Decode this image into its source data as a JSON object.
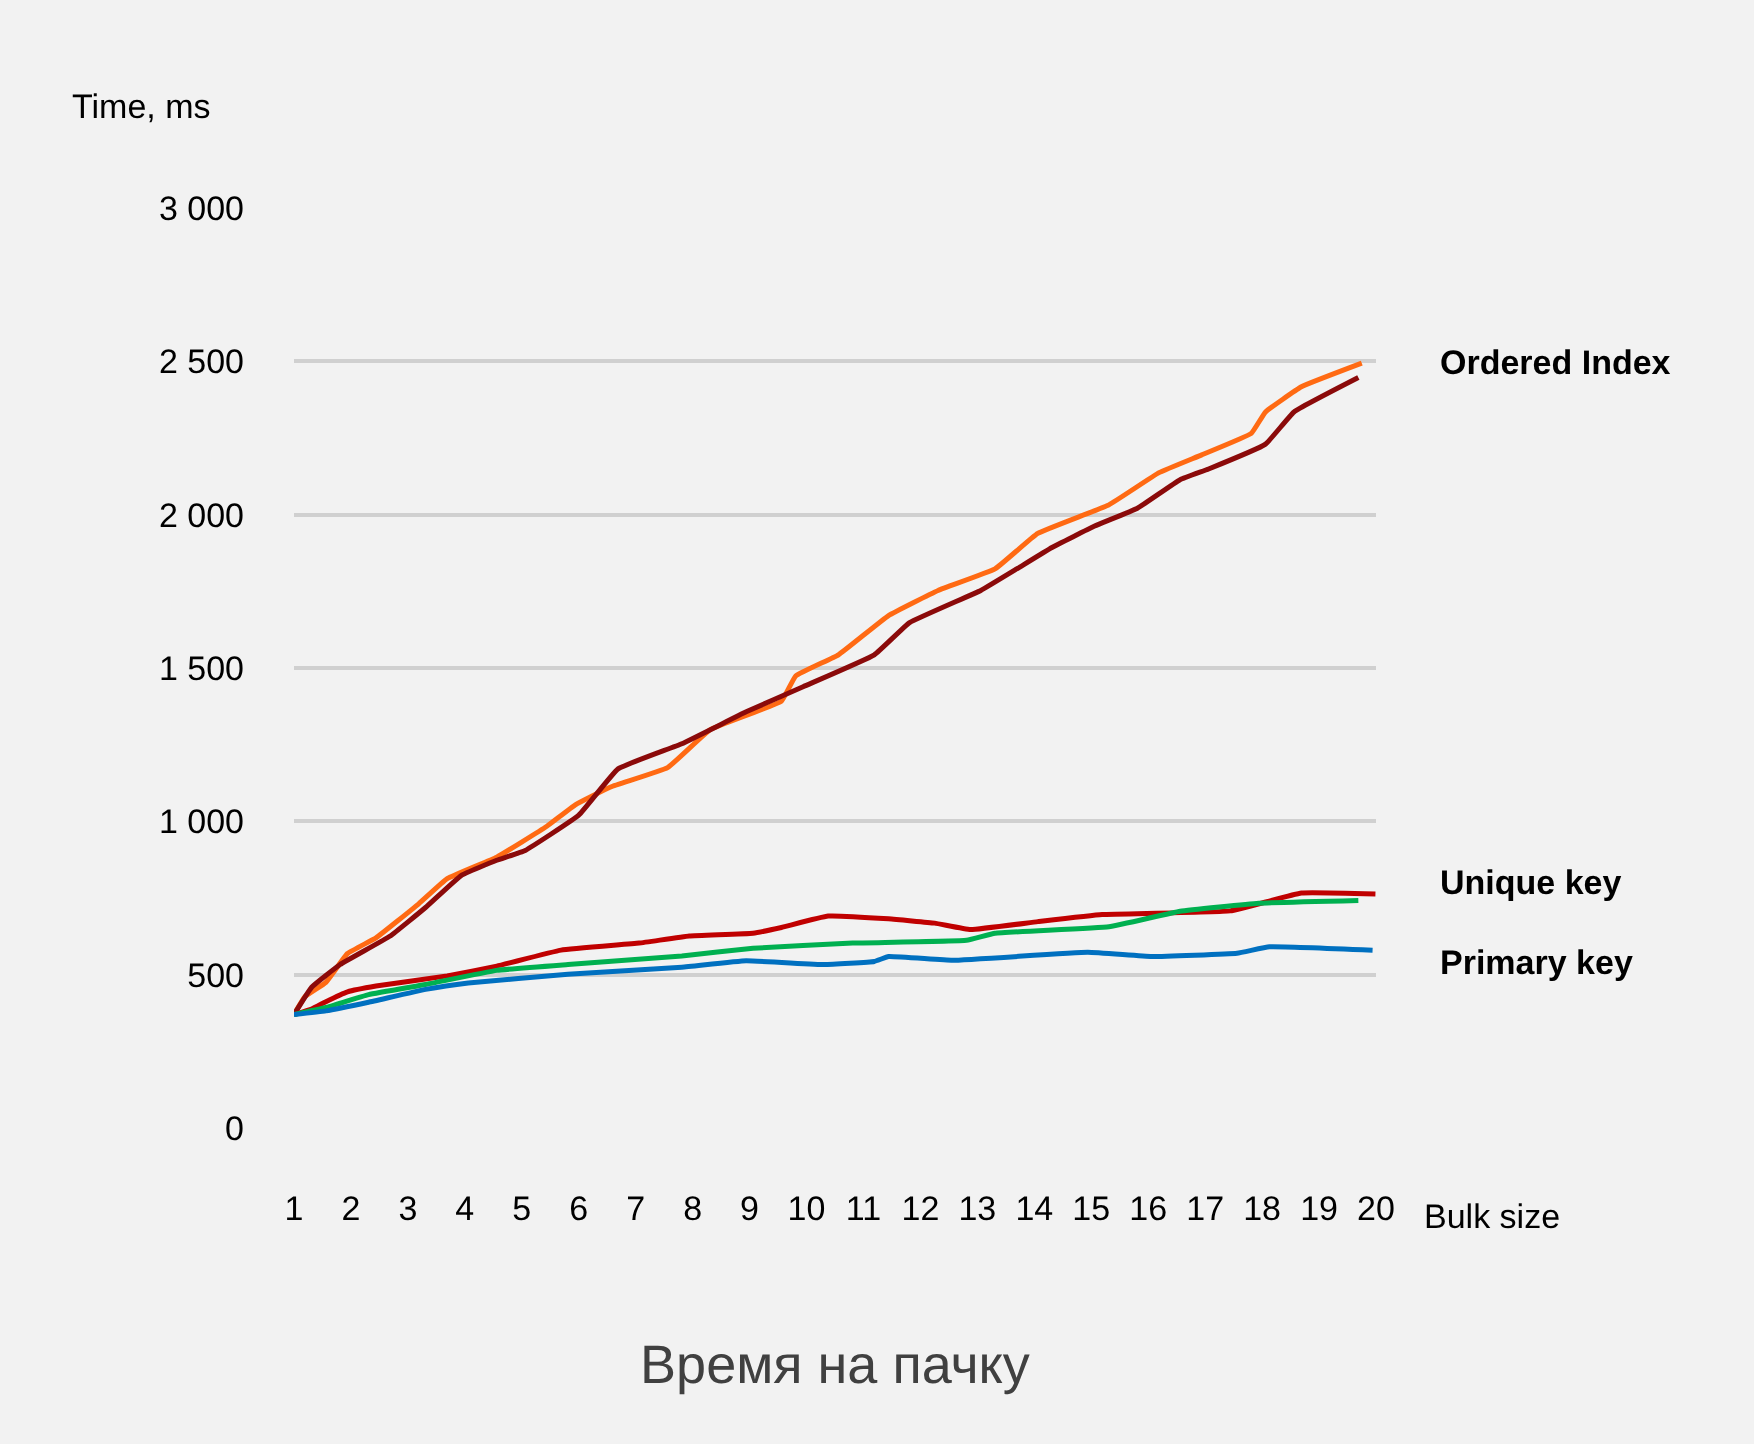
{
  "chart_data": {
    "type": "line",
    "title": "Время на пачку",
    "xlabel": "Bulk size",
    "ylabel": "Time, ms",
    "xlim": [
      1,
      20
    ],
    "xticks": [
      1,
      2,
      3,
      4,
      5,
      6,
      7,
      8,
      9,
      10,
      11,
      12,
      13,
      14,
      15,
      16,
      17,
      18,
      19,
      20
    ],
    "ylim": [
      0,
      3000
    ],
    "yticks": [
      {
        "value": 0,
        "label": "0"
      },
      {
        "value": 500,
        "label": "500"
      },
      {
        "value": 1000,
        "label": "1 000"
      },
      {
        "value": 1500,
        "label": "1 500"
      },
      {
        "value": 2000,
        "label": "2 000"
      },
      {
        "value": 2500,
        "label": "2 500"
      },
      {
        "value": 3000,
        "label": "3 000"
      }
    ],
    "grid": "y",
    "legend": false,
    "marker": "none",
    "line_style": "solid",
    "series": [
      {
        "name": "Ordered Index",
        "color": "#ff6a13",
        "x": [
          1,
          1.19,
          1.56,
          1.94,
          2.44,
          3.19,
          3.69,
          4.56,
          5.44,
          5.94,
          6.56,
          7.56,
          8.31,
          9.56,
          9.81,
          10.56,
          11.44,
          12.31,
          13.31,
          14.06,
          15.31,
          16.19,
          16.94,
          17.81,
          18.06,
          18.69,
          19.75
        ],
        "values": [
          370,
          428,
          475,
          569,
          620,
          731,
          813,
          883,
          984,
          1054,
          1112,
          1175,
          1299,
          1392,
          1474,
          1543,
          1671,
          1753,
          1823,
          1939,
          2032,
          2137,
          2195,
          2265,
          2335,
          2417,
          2494
        ]
      },
      {
        "color": "#8b0a0a",
        "x": [
          1,
          1.31,
          1.81,
          2.69,
          3.31,
          3.94,
          4.56,
          5.06,
          6.0,
          6.69,
          7.81,
          8.94,
          9.94,
          11.19,
          11.81,
          13.06,
          13.69,
          14.31,
          15.06,
          15.81,
          16.56,
          17.06,
          18.06,
          18.56,
          19.69
        ],
        "values": [
          370,
          459,
          533,
          626,
          719,
          824,
          873,
          905,
          1020,
          1171,
          1253,
          1357,
          1439,
          1543,
          1648,
          1753,
          1823,
          1893,
          1963,
          2021,
          2114,
          2149,
          2230,
          2335,
          2447
        ]
      },
      {
        "name": "Unique key",
        "color": "#c00000",
        "x": [
          1,
          1.31,
          1.56,
          1.94,
          2.44,
          3.69,
          4.56,
          5.69,
          7.06,
          7.94,
          9.06,
          9.56,
          10.38,
          11.44,
          12.25,
          12.88,
          14.06,
          15.19,
          17.44,
          18.69,
          19.99
        ],
        "values": [
          370,
          388,
          412,
          444,
          463,
          496,
          528,
          580,
          603,
          626,
          635,
          654,
          691,
          682,
          668,
          647,
          673,
          696,
          708,
          766,
          763
        ]
      },
      {
        "color": "#00b050",
        "x": [
          1,
          1.56,
          2.31,
          3.31,
          4.56,
          5.81,
          7.81,
          9.06,
          10.81,
          12.81,
          13.31,
          15.31,
          16.56,
          17.94,
          19.69
        ],
        "values": [
          370,
          393,
          435,
          468,
          514,
          533,
          561,
          586,
          603,
          612,
          635,
          656,
          707,
          733,
          742
        ]
      },
      {
        "name": "Primary key",
        "color": "#0070c0",
        "x": [
          1,
          1.56,
          2.31,
          3.31,
          4.06,
          5.81,
          7.81,
          8.94,
          10.31,
          11.19,
          11.44,
          12.56,
          14.94,
          16.06,
          17.56,
          18.13,
          19.94
        ],
        "values": [
          370,
          382,
          410,
          452,
          473,
          501,
          524,
          545,
          533,
          543,
          559,
          547,
          573,
          559,
          570,
          591,
          580
        ]
      }
    ]
  }
}
